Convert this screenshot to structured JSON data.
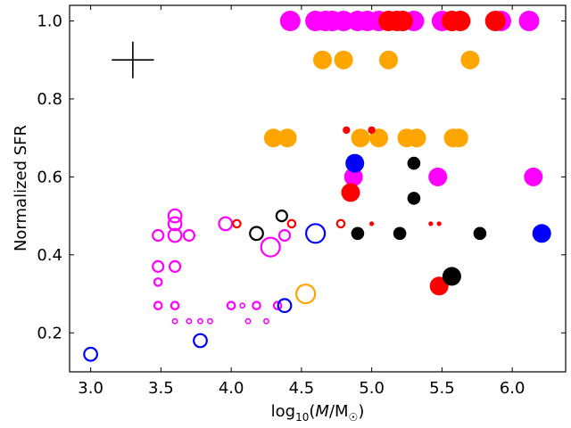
{
  "chart_data": {
    "type": "scatter",
    "title": "",
    "xlabel": "log10(M/M☉)",
    "xlabel_parts": {
      "log": "log",
      "sub": "10",
      "open": "(",
      "M": "M",
      "slash": "/M",
      "sun": "☉",
      "close": ")"
    },
    "ylabel": "Normalized SFR",
    "xlim": [
      2.85,
      6.38
    ],
    "ylim": [
      0.1,
      1.04
    ],
    "xticks": [
      3.0,
      3.5,
      4.0,
      4.5,
      5.0,
      5.5,
      6.0
    ],
    "xtick_labels": [
      "3.0",
      "3.5",
      "4.0",
      "4.5",
      "5.0",
      "5.5",
      "6.0"
    ],
    "yticks": [
      0.2,
      0.4,
      0.6,
      0.8,
      1.0
    ],
    "ytick_labels": [
      "0.2",
      "0.4",
      "0.6",
      "0.8",
      "1.0"
    ],
    "grid": false,
    "colors": {
      "magenta": "#ff00ff",
      "orange": "#ffa500",
      "red": "#ff0000",
      "black": "#000000",
      "blue": "#0000ff"
    },
    "error_cross": {
      "x": 3.3,
      "y": 0.9,
      "dx": 0.15,
      "dy": 0.047
    },
    "series": [
      {
        "name": "magenta",
        "color": "#ff00ff",
        "points": [
          [
            4.42,
            1.0,
            "filled",
            "xl"
          ],
          [
            4.6,
            1.0,
            "filled",
            "xl"
          ],
          [
            4.67,
            1.0,
            "filled",
            "xl"
          ],
          [
            4.72,
            1.0,
            "filled",
            "xl"
          ],
          [
            4.8,
            1.0,
            "filled",
            "xl"
          ],
          [
            4.9,
            1.0,
            "filled",
            "xl"
          ],
          [
            4.97,
            1.0,
            "filled",
            "xl"
          ],
          [
            5.05,
            1.0,
            "filled",
            "xl"
          ],
          [
            5.3,
            1.0,
            "filled",
            "xl"
          ],
          [
            5.5,
            1.0,
            "filled",
            "xl"
          ],
          [
            5.92,
            1.0,
            "filled",
            "xl"
          ],
          [
            6.12,
            1.0,
            "filled",
            "xl"
          ],
          [
            4.87,
            0.6,
            "filled",
            "l"
          ],
          [
            5.47,
            0.6,
            "filled",
            "l"
          ],
          [
            6.15,
            0.6,
            "filled",
            "l"
          ],
          [
            3.6,
            0.5,
            "open",
            "m"
          ],
          [
            3.6,
            0.48,
            "open",
            "m"
          ],
          [
            3.48,
            0.45,
            "open",
            "s"
          ],
          [
            3.6,
            0.45,
            "open",
            "m"
          ],
          [
            3.7,
            0.45,
            "open",
            "s"
          ],
          [
            3.96,
            0.48,
            "open",
            "m"
          ],
          [
            4.38,
            0.45,
            "open",
            "s"
          ],
          [
            4.28,
            0.42,
            "open",
            "l"
          ],
          [
            3.48,
            0.37,
            "open",
            "s"
          ],
          [
            3.6,
            0.37,
            "open",
            "s"
          ],
          [
            3.48,
            0.33,
            "open",
            "xs"
          ],
          [
            3.48,
            0.27,
            "open",
            "xs"
          ],
          [
            3.6,
            0.27,
            "open",
            "xs"
          ],
          [
            4.0,
            0.27,
            "open",
            "xs"
          ],
          [
            4.08,
            0.27,
            "open",
            "xxs"
          ],
          [
            4.18,
            0.27,
            "open",
            "xs"
          ],
          [
            4.33,
            0.27,
            "open",
            "xs"
          ],
          [
            3.6,
            0.23,
            "open",
            "xxs"
          ],
          [
            3.7,
            0.23,
            "open",
            "xxs"
          ],
          [
            3.78,
            0.23,
            "open",
            "xxs"
          ],
          [
            3.85,
            0.23,
            "open",
            "xxs"
          ],
          [
            4.12,
            0.23,
            "open",
            "xxs"
          ],
          [
            4.25,
            0.23,
            "open",
            "xxs"
          ]
        ]
      },
      {
        "name": "orange",
        "color": "#ffa500",
        "points": [
          [
            4.65,
            0.9,
            "filled",
            "l"
          ],
          [
            4.8,
            0.9,
            "filled",
            "l"
          ],
          [
            5.12,
            0.9,
            "filled",
            "l"
          ],
          [
            5.7,
            0.9,
            "filled",
            "l"
          ],
          [
            4.3,
            0.7,
            "filled",
            "l"
          ],
          [
            4.4,
            0.7,
            "filled",
            "l"
          ],
          [
            4.92,
            0.7,
            "filled",
            "l"
          ],
          [
            5.05,
            0.7,
            "filled",
            "l"
          ],
          [
            5.25,
            0.7,
            "filled",
            "l"
          ],
          [
            5.32,
            0.7,
            "filled",
            "l"
          ],
          [
            5.58,
            0.7,
            "filled",
            "l"
          ],
          [
            5.62,
            0.7,
            "filled",
            "l"
          ],
          [
            4.53,
            0.3,
            "open",
            "l"
          ]
        ]
      },
      {
        "name": "red",
        "color": "#ff0000",
        "points": [
          [
            5.12,
            1.0,
            "filled",
            "xl"
          ],
          [
            5.18,
            1.0,
            "filled",
            "xl"
          ],
          [
            5.22,
            1.0,
            "filled",
            "xl"
          ],
          [
            5.57,
            1.0,
            "filled",
            "xl"
          ],
          [
            5.63,
            1.0,
            "filled",
            "xl"
          ],
          [
            5.88,
            1.0,
            "filled",
            "xl"
          ],
          [
            4.82,
            0.72,
            "filled",
            "xs"
          ],
          [
            5.0,
            0.72,
            "filled",
            "xs"
          ],
          [
            4.85,
            0.56,
            "filled",
            "l"
          ],
          [
            5.48,
            0.32,
            "filled",
            "l"
          ],
          [
            4.04,
            0.48,
            "open",
            "xs"
          ],
          [
            4.43,
            0.48,
            "open",
            "xs"
          ],
          [
            4.78,
            0.48,
            "open",
            "xs"
          ],
          [
            5.0,
            0.48,
            "filled",
            "xxs"
          ],
          [
            5.42,
            0.48,
            "filled",
            "xxs"
          ],
          [
            5.48,
            0.48,
            "filled",
            "xxs"
          ]
        ]
      },
      {
        "name": "black",
        "color": "#000000",
        "points": [
          [
            4.88,
            0.635,
            "open",
            "xs"
          ],
          [
            5.3,
            0.635,
            "filled",
            "m"
          ],
          [
            5.3,
            0.545,
            "filled",
            "m"
          ],
          [
            4.9,
            0.455,
            "filled",
            "m"
          ],
          [
            5.2,
            0.455,
            "filled",
            "m"
          ],
          [
            5.77,
            0.455,
            "filled",
            "m"
          ],
          [
            5.57,
            0.345,
            "filled",
            "l"
          ],
          [
            4.18,
            0.455,
            "open",
            "m"
          ],
          [
            4.36,
            0.5,
            "open",
            "s"
          ]
        ]
      },
      {
        "name": "blue",
        "color": "#0000ff",
        "points": [
          [
            4.88,
            0.635,
            "filled",
            "l"
          ],
          [
            6.21,
            0.455,
            "filled",
            "l"
          ],
          [
            4.6,
            0.455,
            "open",
            "l"
          ],
          [
            4.38,
            0.27,
            "open",
            "m"
          ],
          [
            3.78,
            0.18,
            "open",
            "m"
          ],
          [
            3.0,
            0.145,
            "open",
            "m"
          ]
        ]
      }
    ]
  }
}
